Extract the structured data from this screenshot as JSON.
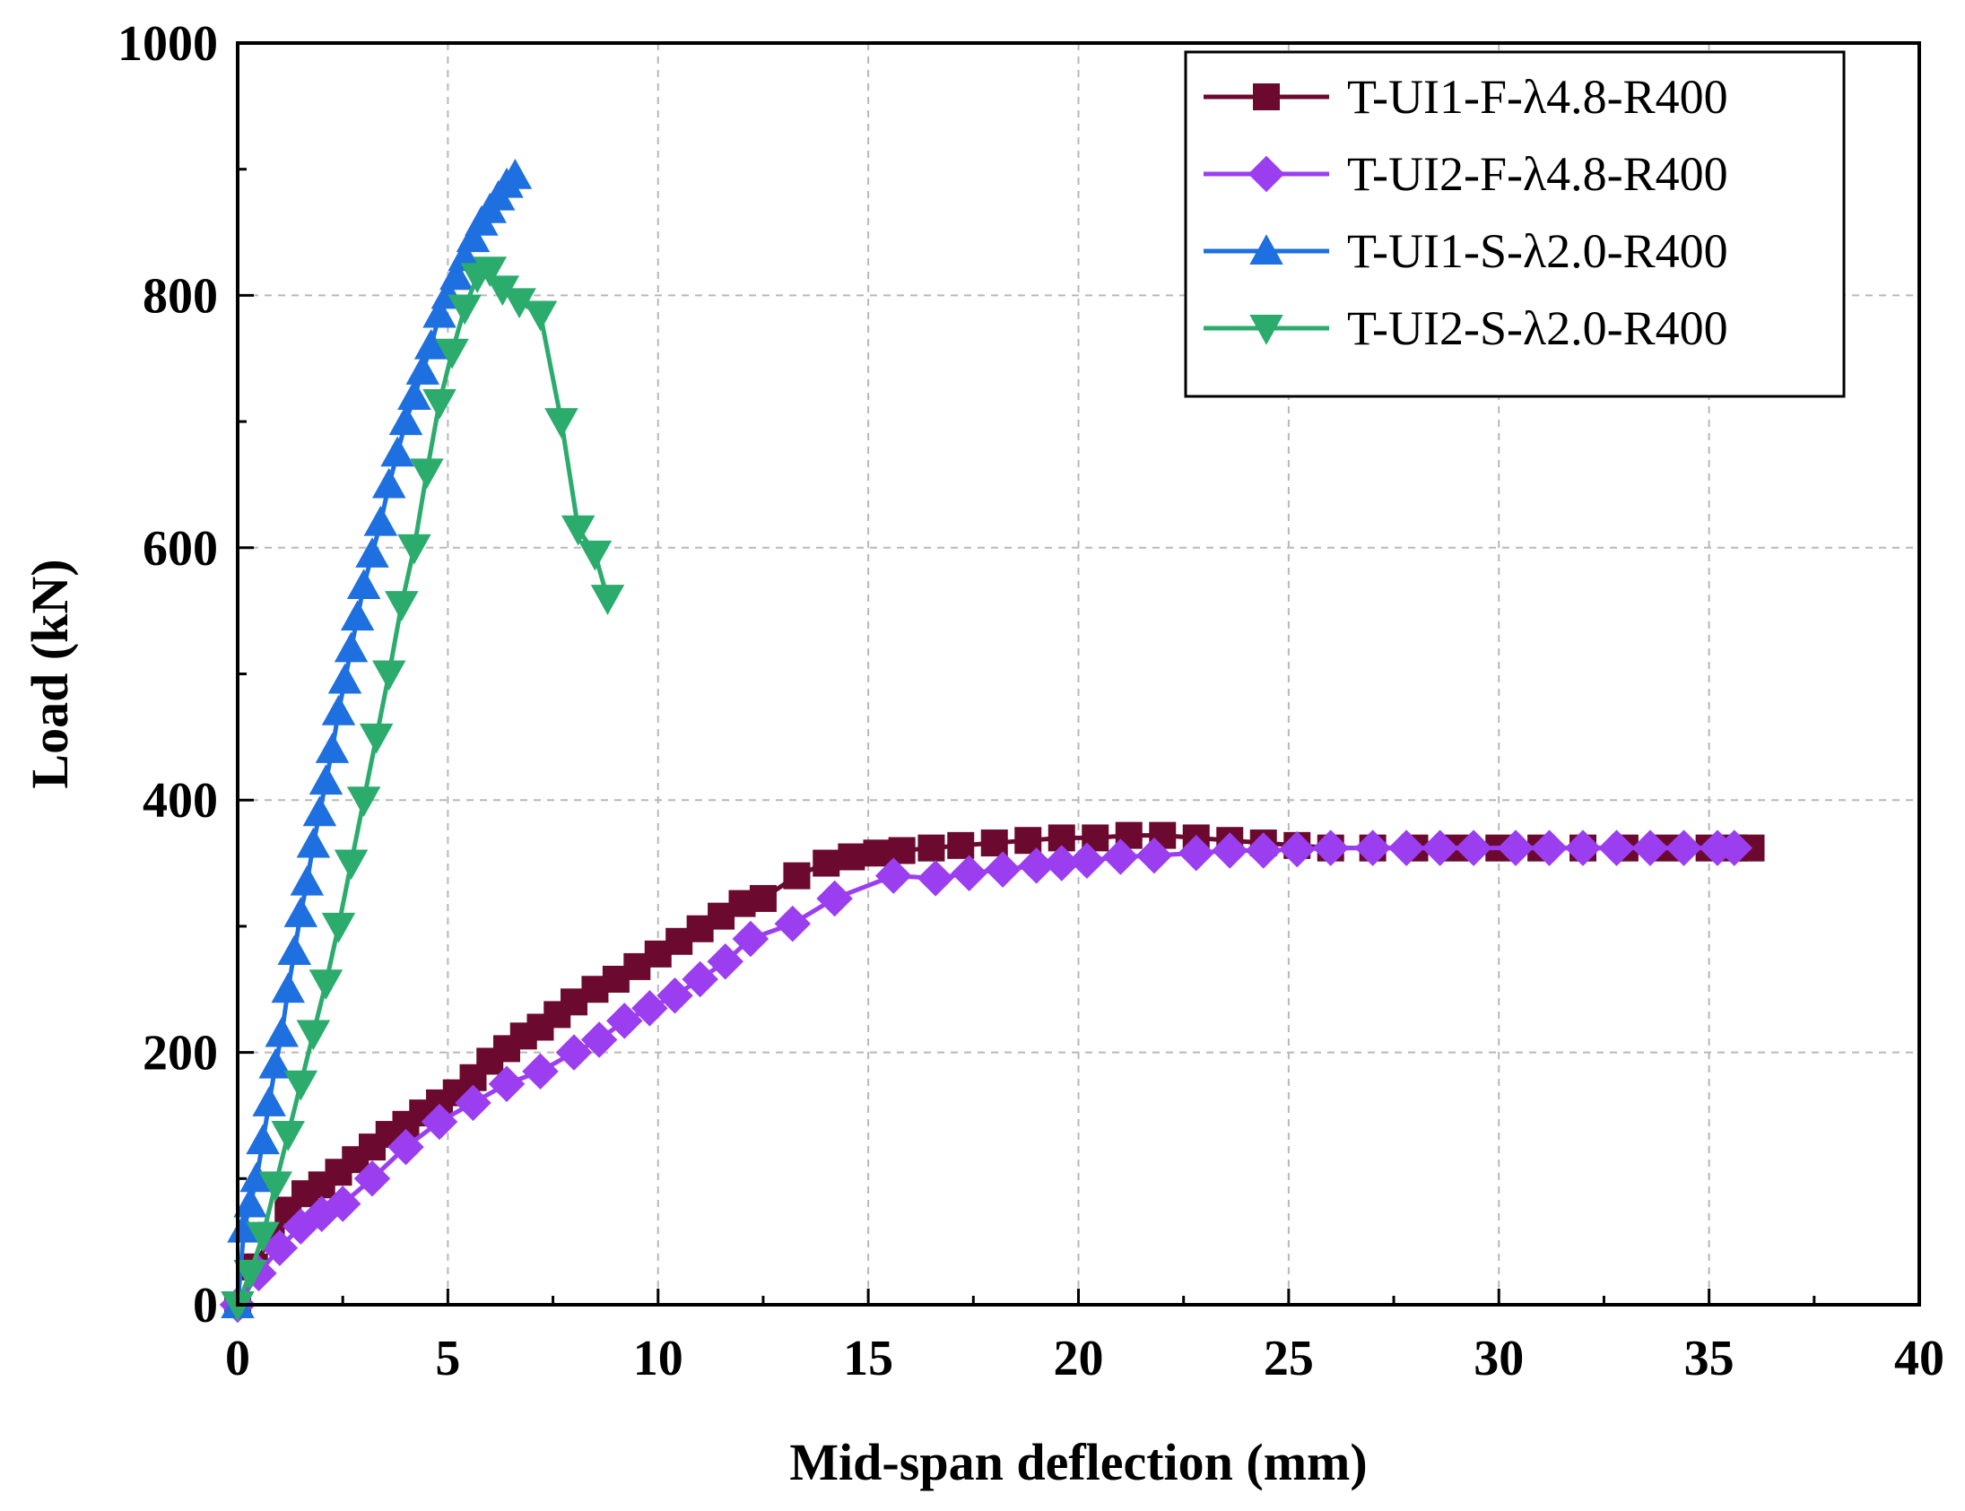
{
  "chart_data": {
    "type": "line",
    "title": "",
    "xlabel": "Mid-span deflection (mm)",
    "ylabel": "Load (kN)",
    "xlim": [
      0,
      40
    ],
    "ylim": [
      0,
      1000
    ],
    "xticks": [
      0,
      5,
      10,
      15,
      20,
      25,
      30,
      35,
      40
    ],
    "yticks": [
      0,
      200,
      400,
      600,
      800,
      1000
    ],
    "grid": true,
    "legend_position": "top-right",
    "series": [
      {
        "name": "T-UI1-F-λ4.8-R400",
        "color": "#6b0a2e",
        "marker": "square",
        "x": [
          0,
          0.4,
          0.8,
          1.2,
          1.6,
          2.0,
          2.4,
          2.8,
          3.2,
          3.6,
          4.0,
          4.4,
          4.8,
          5.2,
          5.6,
          6.0,
          6.4,
          6.8,
          7.2,
          7.6,
          8.0,
          8.5,
          9.0,
          9.5,
          10.0,
          10.5,
          11.0,
          11.5,
          12.0,
          12.5,
          13.3,
          14.0,
          14.6,
          15.2,
          15.8,
          16.5,
          17.2,
          18.0,
          18.8,
          19.6,
          20.4,
          21.2,
          22.0,
          22.8,
          23.6,
          24.4,
          25.2,
          26.0,
          27.0,
          28.0,
          29.0,
          30.0,
          31.0,
          32.0,
          33.0,
          34.0,
          35.0,
          35.6,
          36.0
        ],
        "y": [
          0,
          30,
          55,
          75,
          88,
          95,
          105,
          115,
          125,
          135,
          143,
          152,
          160,
          168,
          180,
          193,
          203,
          213,
          220,
          230,
          240,
          250,
          258,
          268,
          278,
          288,
          298,
          308,
          318,
          322,
          340,
          350,
          355,
          358,
          360,
          362,
          364,
          366,
          368,
          370,
          370,
          372,
          372,
          370,
          368,
          366,
          364,
          362,
          362,
          362,
          362,
          362,
          362,
          362,
          362,
          362,
          362,
          362,
          362
        ]
      },
      {
        "name": "T-UI2-F-λ4.8-R400",
        "color": "#9b3ef0",
        "marker": "diamond",
        "x": [
          0,
          0.5,
          1.0,
          1.5,
          2.0,
          2.5,
          3.2,
          4.0,
          4.8,
          5.6,
          6.4,
          7.2,
          8.0,
          8.6,
          9.2,
          9.8,
          10.4,
          11.0,
          11.6,
          12.2,
          13.2,
          14.2,
          15.6,
          16.6,
          17.4,
          18.2,
          19.0,
          19.6,
          20.2,
          21.0,
          21.8,
          22.8,
          23.6,
          24.4,
          25.2,
          26.0,
          27.0,
          27.8,
          28.6,
          29.4,
          30.4,
          31.2,
          32.0,
          32.8,
          33.6,
          34.4,
          35.2,
          35.6
        ],
        "y": [
          0,
          25,
          45,
          62,
          72,
          80,
          100,
          125,
          145,
          160,
          175,
          185,
          200,
          210,
          225,
          235,
          245,
          258,
          272,
          290,
          302,
          322,
          340,
          338,
          342,
          345,
          348,
          350,
          352,
          355,
          356,
          358,
          360,
          360,
          361,
          362,
          362,
          362,
          362,
          362,
          362,
          362,
          362,
          362,
          362,
          362,
          362,
          362
        ]
      },
      {
        "name": "T-UI1-S-λ2.0-R400",
        "color": "#1e6fe0",
        "marker": "triangle-up",
        "x": [
          0,
          0.15,
          0.3,
          0.45,
          0.6,
          0.75,
          0.9,
          1.05,
          1.2,
          1.35,
          1.5,
          1.65,
          1.8,
          1.95,
          2.1,
          2.25,
          2.4,
          2.55,
          2.7,
          2.85,
          3.0,
          3.2,
          3.4,
          3.6,
          3.8,
          4.0,
          4.2,
          4.4,
          4.6,
          4.8,
          5.0,
          5.2,
          5.4,
          5.6,
          5.8,
          6.0,
          6.2,
          6.4,
          6.6
        ],
        "y": [
          0,
          60,
          80,
          100,
          130,
          160,
          190,
          215,
          250,
          280,
          310,
          335,
          365,
          390,
          415,
          440,
          470,
          495,
          520,
          545,
          570,
          595,
          620,
          650,
          675,
          700,
          720,
          740,
          760,
          785,
          800,
          815,
          830,
          845,
          858,
          868,
          878,
          888,
          895
        ]
      },
      {
        "name": "T-UI2-S-λ2.0-R400",
        "color": "#2bab6c",
        "marker": "triangle-down",
        "x": [
          0,
          0.3,
          0.6,
          0.9,
          1.2,
          1.5,
          1.8,
          2.1,
          2.4,
          2.7,
          3.0,
          3.3,
          3.6,
          3.9,
          4.2,
          4.5,
          4.8,
          5.1,
          5.4,
          5.7,
          6.0,
          6.3,
          6.7,
          7.2,
          7.7,
          8.1,
          8.5,
          8.8
        ],
        "y": [
          0,
          25,
          55,
          95,
          135,
          175,
          215,
          255,
          300,
          350,
          400,
          450,
          500,
          555,
          600,
          660,
          715,
          755,
          790,
          815,
          820,
          805,
          795,
          785,
          700,
          615,
          595,
          560
        ]
      }
    ]
  }
}
